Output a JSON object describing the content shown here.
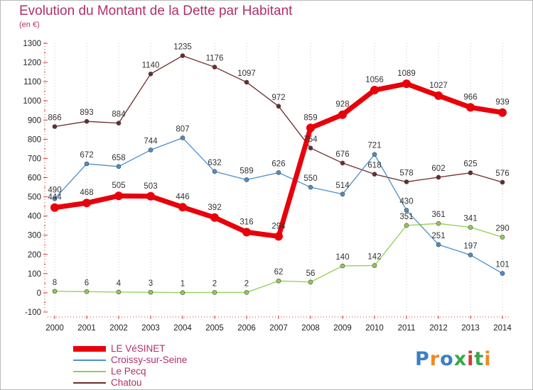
{
  "header": {
    "title": "Evolution du Montant de la Dette par Habitant",
    "subtitle": "(en €)"
  },
  "logo": {
    "text": "Proxiti",
    "letter_colors": [
      "#3a7fc4",
      "#ef8a1e",
      "#3a7fc4",
      "#3aa64a",
      "#d43b2e",
      "#3aa64a",
      "#ef8a1e"
    ]
  },
  "chart_data": {
    "type": "line",
    "title": "Evolution du Montant de la Dette par Habitant",
    "ylabel": "(en €)",
    "xlabel": "",
    "x": [
      "2000",
      "2001",
      "2002",
      "2003",
      "2004",
      "2005",
      "2006",
      "2007",
      "2008",
      "2009",
      "2010",
      "2011",
      "2012",
      "2013",
      "2014"
    ],
    "ylim": [
      -100,
      1300
    ],
    "yticks": [
      "-100",
      "0",
      "100",
      "200",
      "300",
      "400",
      "500",
      "600",
      "700",
      "800",
      "900",
      "1000",
      "1100",
      "1200",
      "1300"
    ],
    "grid": "vertical dotted",
    "legend_position": "bottom-left",
    "series": [
      {
        "name": "LE VéSINET",
        "color": "#e8000b",
        "values": [
          444,
          468,
          505,
          503,
          446,
          392,
          316,
          294,
          859,
          928,
          1056,
          1089,
          1027,
          966,
          939
        ],
        "labels": [
          "444",
          "468",
          "505",
          "503",
          "446",
          "392",
          "316",
          "294",
          "859",
          "928",
          "1056",
          "1089",
          "1027",
          "966",
          "939"
        ]
      },
      {
        "name": "Croissy-sur-Seine",
        "color": "#4a8fcb",
        "values": [
          490,
          672,
          658,
          744,
          807,
          632,
          589,
          626,
          550,
          514,
          721,
          430,
          251,
          197,
          101
        ],
        "labels": [
          "490",
          "672",
          "658",
          "744",
          "807",
          "632",
          "589",
          "626",
          "550",
          "514",
          "721",
          "430",
          "251",
          "197",
          "101"
        ]
      },
      {
        "name": "Le Pecq",
        "color": "#8fce4e",
        "values": [
          8,
          6,
          4,
          3,
          1,
          2,
          2,
          62,
          56,
          140,
          142,
          351,
          361,
          341,
          290
        ],
        "labels": [
          "8",
          "6",
          "4",
          "3",
          "1",
          "2",
          "2",
          "62",
          "56",
          "140",
          "142",
          "351",
          "361",
          "341",
          "290"
        ]
      },
      {
        "name": "Chatou",
        "color": "#6e2a2a",
        "values": [
          866,
          893,
          884,
          1140,
          1235,
          1176,
          1097,
          972,
          754,
          676,
          618,
          578,
          602,
          625,
          576
        ],
        "labels": [
          "866",
          "893",
          "884",
          "1140",
          "1235",
          "1176",
          "1097",
          "972",
          "754",
          "676",
          "618",
          "578",
          "602",
          "625",
          "576"
        ]
      }
    ]
  }
}
